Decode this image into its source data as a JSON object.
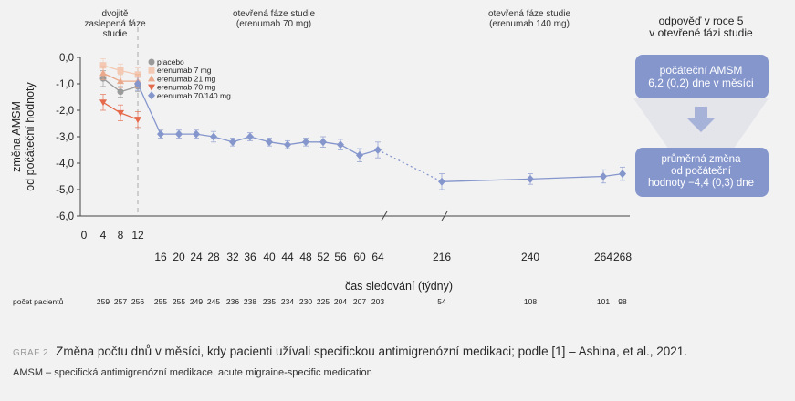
{
  "chart_data": {
    "type": "line",
    "ylabel": [
      "změna AMSM",
      "od počáteční hodnoty"
    ],
    "xlabel": "čas sledování (týdny)",
    "ylim": [
      -6,
      0
    ],
    "yticks": [
      "0,0",
      "-1,0",
      "-2,0",
      "-3,0",
      "-4,0",
      "-5,0",
      "-6,0"
    ],
    "xticks": [
      "0",
      "4",
      "8",
      "12",
      "16",
      "20",
      "24",
      "28",
      "32",
      "36",
      "40",
      "44",
      "48",
      "52",
      "56",
      "60",
      "64",
      "216",
      "240",
      "264",
      "268"
    ],
    "phases": [
      {
        "label": [
          "dvojitě",
          "zaslepená fáze",
          "studie"
        ]
      },
      {
        "label": [
          "otevřená fáze studie",
          "(erenumab 70 mg)"
        ]
      },
      {
        "label": [
          "otevřená fáze studie",
          "(erenumab 140 mg)"
        ]
      }
    ],
    "series": [
      {
        "name": "placebo",
        "color": "#9a9a9a",
        "marker": "circle",
        "points": [
          {
            "x": 4,
            "y": -0.8,
            "err": 0.3
          },
          {
            "x": 8,
            "y": -1.3,
            "err": 0.2
          },
          {
            "x": 12,
            "y": -1.1,
            "err": 0.2
          }
        ]
      },
      {
        "name": "erenumab 7 mg",
        "color": "#f3c9b3",
        "marker": "square",
        "points": [
          {
            "x": 4,
            "y": -0.3,
            "err": 0.25
          },
          {
            "x": 8,
            "y": -0.5,
            "err": 0.25
          },
          {
            "x": 12,
            "y": -0.65,
            "err": 0.25
          }
        ]
      },
      {
        "name": "erenumab 21 mg",
        "color": "#eaa98a",
        "marker": "triangle-up",
        "points": [
          {
            "x": 4,
            "y": -0.6,
            "err": 0.25
          },
          {
            "x": 8,
            "y": -0.9,
            "err": 0.25
          },
          {
            "x": 12,
            "y": -0.9,
            "err": 0.25
          }
        ]
      },
      {
        "name": "erenumab 70 mg",
        "color": "#e5694a",
        "marker": "triangle-down",
        "points": [
          {
            "x": 4,
            "y": -1.7,
            "err": 0.3
          },
          {
            "x": 8,
            "y": -2.1,
            "err": 0.3
          },
          {
            "x": 12,
            "y": -2.35,
            "err": 0.3
          }
        ]
      },
      {
        "name": "erenumab 70/140 mg",
        "color": "#8596cc",
        "marker": "diamond",
        "points": [
          {
            "x": 12,
            "y": -1.0,
            "err": 0.25
          },
          {
            "x": 16,
            "y": -2.9,
            "err": 0.15
          },
          {
            "x": 20,
            "y": -2.9,
            "err": 0.15
          },
          {
            "x": 24,
            "y": -2.9,
            "err": 0.15
          },
          {
            "x": 28,
            "y": -3.0,
            "err": 0.2
          },
          {
            "x": 32,
            "y": -3.2,
            "err": 0.15
          },
          {
            "x": 36,
            "y": -3.0,
            "err": 0.15
          },
          {
            "x": 40,
            "y": -3.2,
            "err": 0.15
          },
          {
            "x": 44,
            "y": -3.3,
            "err": 0.15
          },
          {
            "x": 48,
            "y": -3.2,
            "err": 0.15
          },
          {
            "x": 52,
            "y": -3.2,
            "err": 0.2
          },
          {
            "x": 56,
            "y": -3.3,
            "err": 0.2
          },
          {
            "x": 60,
            "y": -3.7,
            "err": 0.25
          },
          {
            "x": 64,
            "y": -3.5,
            "err": 0.3
          },
          {
            "x": 216,
            "y": -4.7,
            "err": 0.3
          },
          {
            "x": 240,
            "y": -4.6,
            "err": 0.2
          },
          {
            "x": 264,
            "y": -4.5,
            "err": 0.25
          },
          {
            "x": 268,
            "y": -4.4,
            "err": 0.25
          }
        ]
      }
    ],
    "patients_label": "počet pacientů",
    "patients": [
      {
        "x": 4,
        "n": "259"
      },
      {
        "x": 8,
        "n": "257"
      },
      {
        "x": 12,
        "n": "256"
      },
      {
        "x": 16,
        "n": "255"
      },
      {
        "x": 20,
        "n": "255"
      },
      {
        "x": 24,
        "n": "249"
      },
      {
        "x": 28,
        "n": "245"
      },
      {
        "x": 32,
        "n": "236"
      },
      {
        "x": 36,
        "n": "238"
      },
      {
        "x": 40,
        "n": "235"
      },
      {
        "x": 44,
        "n": "234"
      },
      {
        "x": 48,
        "n": "230"
      },
      {
        "x": 52,
        "n": "225"
      },
      {
        "x": 56,
        "n": "204"
      },
      {
        "x": 60,
        "n": "207"
      },
      {
        "x": 64,
        "n": "203"
      },
      {
        "x": 216,
        "n": "54"
      },
      {
        "x": 240,
        "n": "108"
      },
      {
        "x": 264,
        "n": "101"
      },
      {
        "x": 268,
        "n": "98"
      }
    ]
  },
  "side_panel": {
    "title": [
      "odpověď v roce 5",
      "v otevřené fázi studie"
    ],
    "box1": [
      "počáteční AMSM",
      "6,2 (0,2) dne v měsíci"
    ],
    "box2": [
      "průměrná změna",
      "od počáteční",
      "hodnoty −4,4 (0,3) dne"
    ],
    "colors": {
      "box": "#8596cc",
      "arrow": "#a7b2d8"
    }
  },
  "caption": {
    "label": "GRAF 2",
    "text": "Změna počtu dnů v měsíci, kdy pacienti užívali specifickou antimigrenózní medikaci; podle [1] – Ashina, et al., 2021."
  },
  "note": "AMSM – specifická antimigrenózní medikace, acute migraine-specific medication"
}
